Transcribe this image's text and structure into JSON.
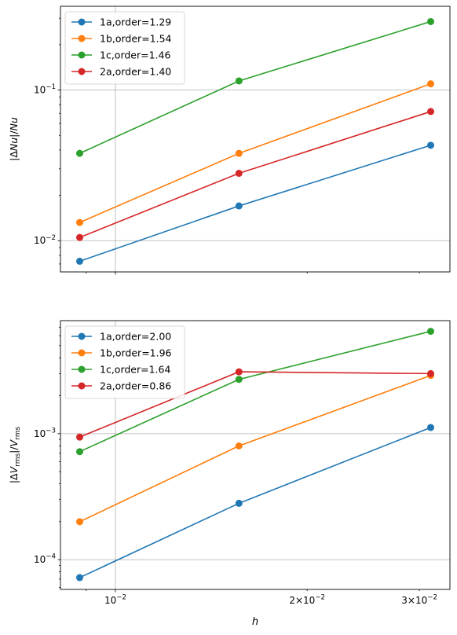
{
  "figure": {
    "xlabel": "h"
  },
  "chart_data": [
    {
      "type": "line",
      "xscale": "log",
      "yscale": "log",
      "xlim": [
        0.0082,
        0.0335
      ],
      "ylim": [
        0.0062,
        0.36
      ],
      "grid": true,
      "legend_position": "top-left",
      "ylabel": "|ΔNu|/Nu",
      "x_tick_labels_shown": false,
      "y_tick_labels": [
        "10^-2",
        "10^-1"
      ],
      "x": [
        0.00879,
        0.01563,
        0.03125
      ],
      "series": [
        {
          "name": "1a,order=1.29",
          "color": "#1f77b4",
          "values": [
            0.0073,
            0.017,
            0.043
          ]
        },
        {
          "name": "1b,order=1.54",
          "color": "#ff7f0e",
          "values": [
            0.0132,
            0.038,
            0.11
          ]
        },
        {
          "name": "1c,order=1.46",
          "color": "#2ca02c",
          "values": [
            0.038,
            0.115,
            0.285
          ]
        },
        {
          "name": "2a,order=1.40",
          "color": "#d62728",
          "values": [
            0.0105,
            0.028,
            0.072
          ]
        }
      ]
    },
    {
      "type": "line",
      "xscale": "log",
      "yscale": "log",
      "xlim": [
        0.0082,
        0.0335
      ],
      "ylim": [
        5.8e-05,
        0.0079
      ],
      "grid": true,
      "legend_position": "top-left",
      "ylabel": "|ΔV_rms|/V_rms",
      "x_tick_labels": [
        "10^-2",
        "2×10^-2",
        "3×10^-2"
      ],
      "y_tick_labels": [
        "10^-4",
        "10^-3"
      ],
      "x": [
        0.00879,
        0.01563,
        0.03125
      ],
      "series": [
        {
          "name": "1a,order=2.00",
          "color": "#1f77b4",
          "values": [
            7.2e-05,
            0.00028,
            0.00112
          ]
        },
        {
          "name": "1b,order=1.96",
          "color": "#ff7f0e",
          "values": [
            0.0002,
            0.0008,
            0.0029
          ]
        },
        {
          "name": "1c,order=1.64",
          "color": "#2ca02c",
          "values": [
            0.00072,
            0.0027,
            0.0065
          ]
        },
        {
          "name": "2a,order=0.86",
          "color": "#d62728",
          "values": [
            0.00094,
            0.0031,
            0.003
          ]
        }
      ]
    }
  ]
}
